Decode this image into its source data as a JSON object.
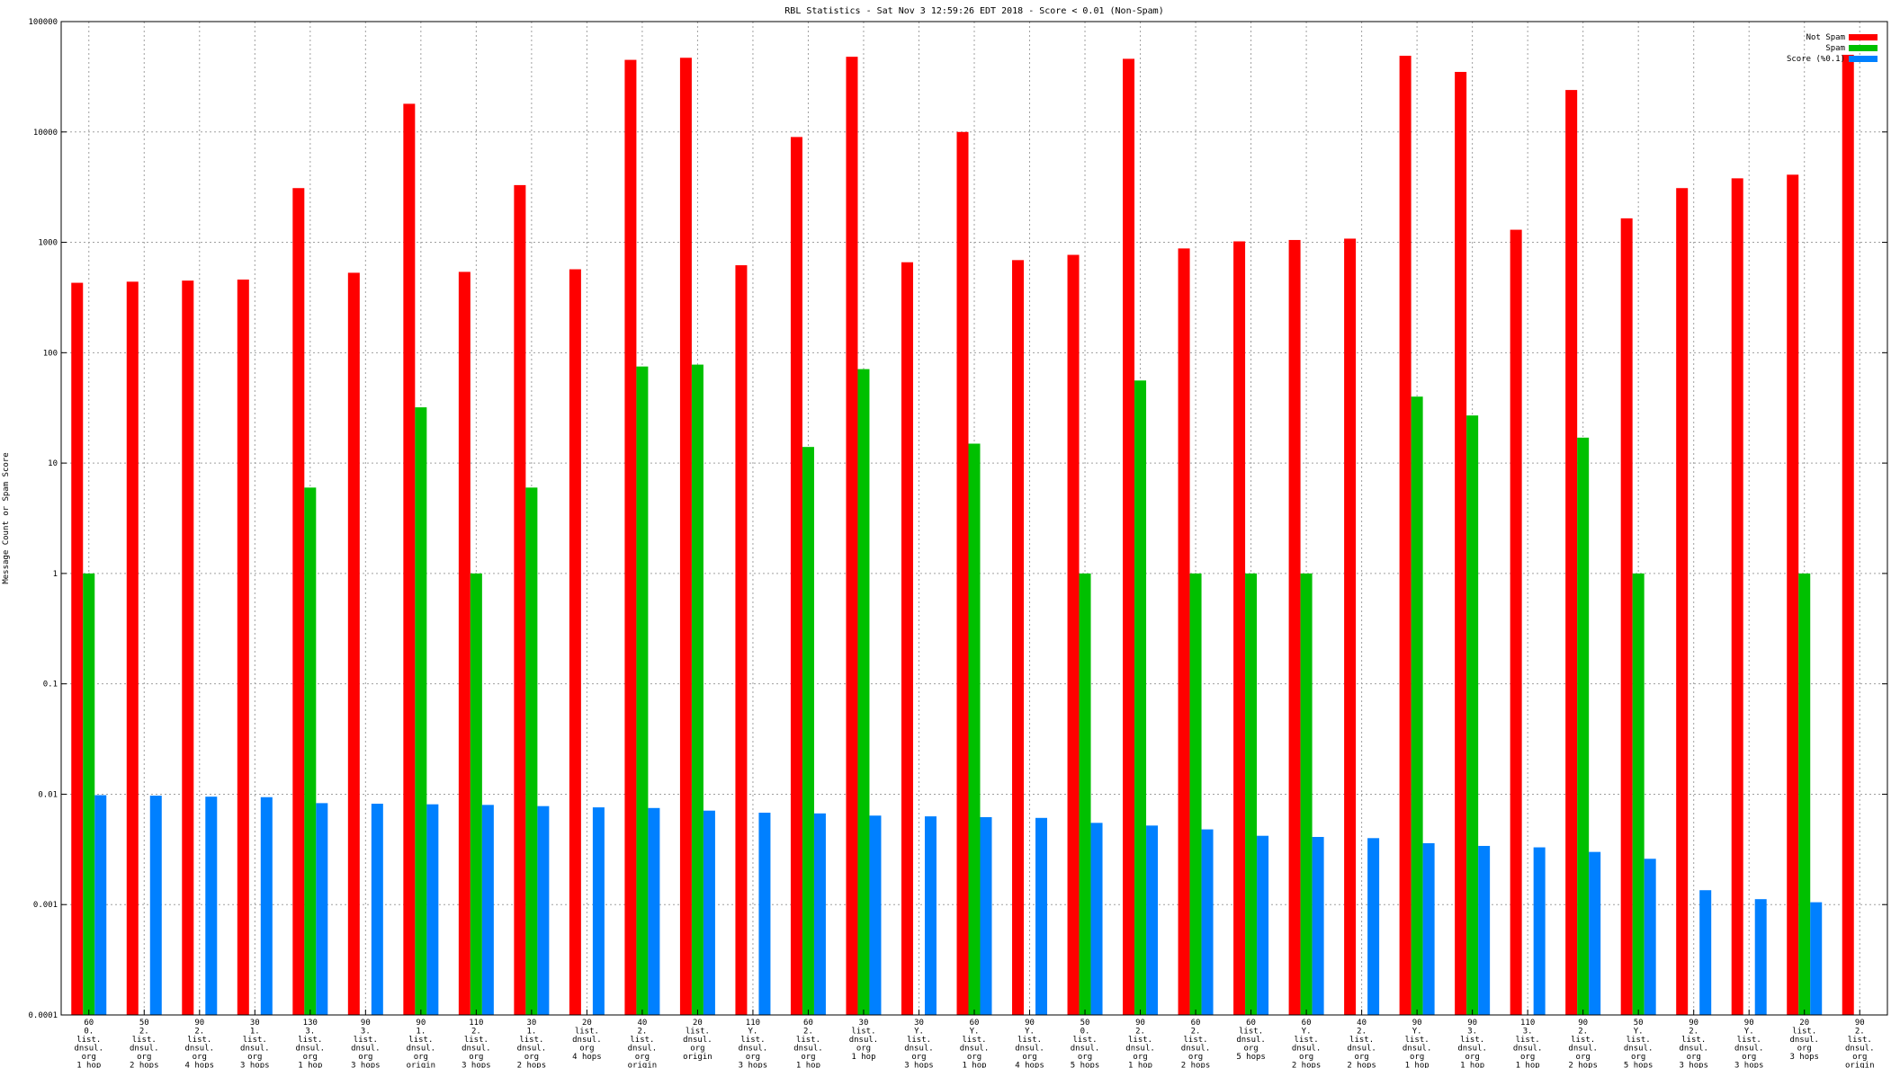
{
  "chart_data": {
    "type": "bar",
    "title": "RBL Statistics - Sat Nov  3 12:59:26 EDT 2018 - Score < 0.01 (Non-Spam)",
    "ylabel": "Message Count or Spam Score",
    "xlabel": "",
    "yscale": "log",
    "ylim": [
      0.0001,
      100000
    ],
    "ytick_labels": [
      "0.0001",
      "0.001",
      "0.01",
      "0.1",
      "1",
      "10",
      "100",
      "1000",
      "10000",
      "100000"
    ],
    "grid": true,
    "legend_position": "top-right",
    "categories": [
      [
        "60",
        "0.",
        "list.",
        "dnsul.",
        "org",
        "1 hop"
      ],
      [
        "50",
        "2.",
        "list.",
        "dnsul.",
        "org",
        "2 hops"
      ],
      [
        "90",
        "2.",
        "list.",
        "dnsul.",
        "org",
        "4 hops"
      ],
      [
        "30",
        "1.",
        "list.",
        "dnsul.",
        "org",
        "3 hops"
      ],
      [
        "130",
        "3.",
        "list.",
        "dnsul.",
        "org",
        "1 hop"
      ],
      [
        "90",
        "3.",
        "list.",
        "dnsul.",
        "org",
        "3 hops"
      ],
      [
        "90",
        "1.",
        "list.",
        "dnsul.",
        "org",
        "origin"
      ],
      [
        "110",
        "2.",
        "list.",
        "dnsul.",
        "org",
        "3 hops"
      ],
      [
        "30",
        "1.",
        "list.",
        "dnsul.",
        "org",
        "2 hops"
      ],
      [
        "20",
        "list.",
        "dnsul.",
        "org",
        "4 hops"
      ],
      [
        "40",
        "2.",
        "list.",
        "dnsul.",
        "org",
        "origin"
      ],
      [
        "20",
        "list.",
        "dnsul.",
        "org",
        "origin"
      ],
      [
        "110",
        "Y.",
        "list.",
        "dnsul.",
        "org",
        "3 hops"
      ],
      [
        "60",
        "2.",
        "list.",
        "dnsul.",
        "org",
        "1 hop"
      ],
      [
        "30",
        "list.",
        "dnsul.",
        "org",
        "1 hop"
      ],
      [
        "30",
        "Y.",
        "list.",
        "dnsul.",
        "org",
        "3 hops"
      ],
      [
        "60",
        "Y.",
        "list.",
        "dnsul.",
        "org",
        "1 hop"
      ],
      [
        "90",
        "Y.",
        "list.",
        "dnsul.",
        "org",
        "4 hops"
      ],
      [
        "50",
        "0.",
        "list.",
        "dnsul.",
        "org",
        "5 hops"
      ],
      [
        "90",
        "2.",
        "list.",
        "dnsul.",
        "org",
        "1 hop"
      ],
      [
        "60",
        "2.",
        "list.",
        "dnsul.",
        "org",
        "2 hops"
      ],
      [
        "60",
        "list.",
        "dnsul.",
        "org",
        "5 hops"
      ],
      [
        "60",
        "Y.",
        "list.",
        "dnsul.",
        "org",
        "2 hops"
      ],
      [
        "40",
        "2.",
        "list.",
        "dnsul.",
        "org",
        "2 hops"
      ],
      [
        "90",
        "Y.",
        "list.",
        "dnsul.",
        "org",
        "1 hop"
      ],
      [
        "90",
        "3.",
        "list.",
        "dnsul.",
        "org",
        "1 hop"
      ],
      [
        "110",
        "3.",
        "list.",
        "dnsul.",
        "org",
        "1 hop"
      ],
      [
        "90",
        "2.",
        "list.",
        "dnsul.",
        "org",
        "2 hops"
      ],
      [
        "50",
        "Y.",
        "list.",
        "dnsul.",
        "org",
        "5 hops"
      ],
      [
        "90",
        "2.",
        "list.",
        "dnsul.",
        "org",
        "3 hops"
      ],
      [
        "90",
        "Y.",
        "list.",
        "dnsul.",
        "org",
        "3 hops"
      ],
      [
        "20",
        "list.",
        "dnsul.",
        "org",
        "3 hops"
      ],
      [
        "90",
        "2.",
        "list.",
        "dnsul.",
        "org",
        "origin"
      ]
    ],
    "series": [
      {
        "name": "Not Spam",
        "color": "#ff0000",
        "values": [
          430,
          440,
          450,
          460,
          3100,
          530,
          18000,
          540,
          3300,
          570,
          45000,
          47000,
          620,
          9000,
          48000,
          660,
          10000,
          690,
          770,
          46000,
          880,
          1020,
          1050,
          1080,
          49000,
          35000,
          1300,
          24000,
          1650,
          3100,
          3800,
          4100,
          50000
        ]
      },
      {
        "name": "Spam",
        "color": "#00c000",
        "values": [
          1,
          null,
          null,
          null,
          6,
          null,
          32,
          1,
          6,
          null,
          75,
          78,
          null,
          14,
          71,
          null,
          15,
          null,
          1,
          56,
          1,
          1,
          1,
          null,
          40,
          27,
          null,
          17,
          1,
          null,
          null,
          1,
          null
        ]
      },
      {
        "name": "Score (%0.1)",
        "color": "#0080ff",
        "values": [
          0.0098,
          0.0097,
          0.0095,
          0.0094,
          0.0083,
          0.0082,
          0.0081,
          0.008,
          0.0078,
          0.0076,
          0.0075,
          0.0071,
          0.0068,
          0.0067,
          0.0064,
          0.0063,
          0.0062,
          0.0061,
          0.0055,
          0.0052,
          0.0048,
          0.0042,
          0.0041,
          0.004,
          0.0036,
          0.0034,
          0.0033,
          0.003,
          0.0026,
          0.00135,
          0.00112,
          0.00105,
          null
        ]
      }
    ]
  }
}
